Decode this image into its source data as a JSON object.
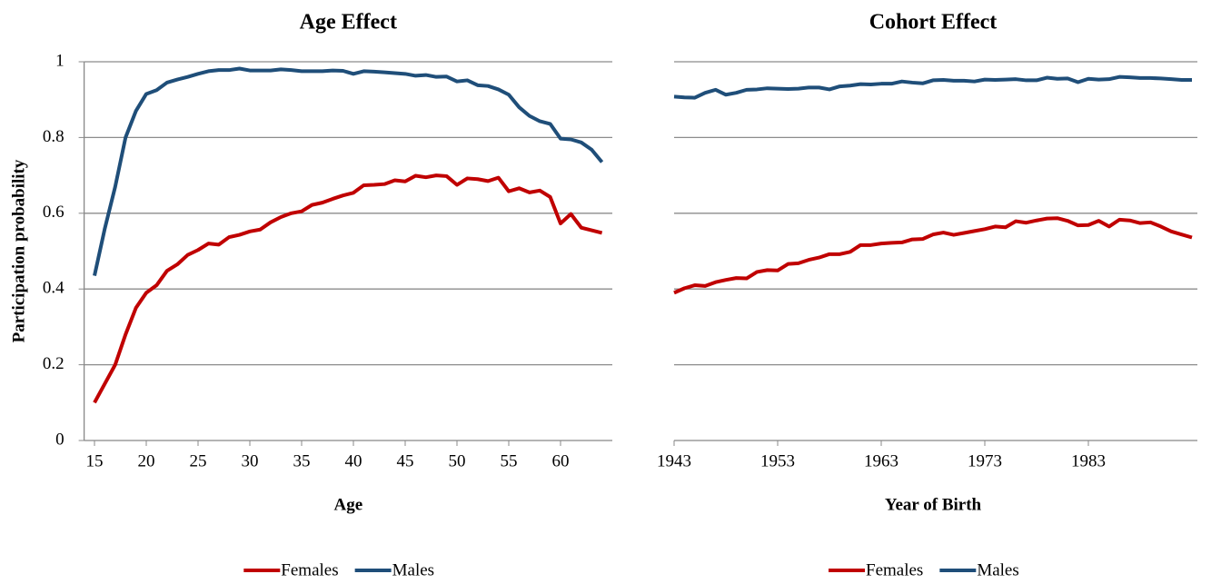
{
  "chart_data": [
    {
      "type": "line",
      "title": "Age Effect",
      "x_label": "Age",
      "y_label": "Participation probability",
      "x": [
        15,
        16,
        17,
        18,
        19,
        20,
        21,
        22,
        23,
        24,
        25,
        26,
        27,
        28,
        29,
        30,
        31,
        32,
        33,
        34,
        35,
        36,
        37,
        38,
        39,
        40,
        41,
        42,
        43,
        44,
        45,
        46,
        47,
        48,
        49,
        50,
        51,
        52,
        53,
        54,
        55,
        56,
        57,
        58,
        59,
        60,
        61,
        62,
        63,
        64
      ],
      "series": [
        {
          "name": "Females",
          "color": "#c00000",
          "values": [
            0.1,
            0.15,
            0.2,
            0.28,
            0.35,
            0.39,
            0.41,
            0.448,
            0.465,
            0.49,
            0.503,
            0.52,
            0.517,
            0.537,
            0.543,
            0.552,
            0.557,
            0.576,
            0.59,
            0.6,
            0.605,
            0.622,
            0.628,
            0.638,
            0.647,
            0.654,
            0.674,
            0.675,
            0.677,
            0.687,
            0.684,
            0.699,
            0.695,
            0.7,
            0.698,
            0.675,
            0.692,
            0.69,
            0.685,
            0.694,
            0.658,
            0.666,
            0.655,
            0.66,
            0.643,
            0.573,
            0.598,
            0.562,
            0.555,
            0.548
          ]
        },
        {
          "name": "Males",
          "color": "#1f4e79",
          "values": [
            0.435,
            0.56,
            0.67,
            0.8,
            0.87,
            0.915,
            0.925,
            0.945,
            0.953,
            0.96,
            0.968,
            0.975,
            0.978,
            0.978,
            0.982,
            0.977,
            0.977,
            0.977,
            0.98,
            0.978,
            0.975,
            0.975,
            0.975,
            0.977,
            0.976,
            0.968,
            0.975,
            0.974,
            0.972,
            0.97,
            0.968,
            0.963,
            0.965,
            0.96,
            0.961,
            0.948,
            0.951,
            0.938,
            0.936,
            0.927,
            0.913,
            0.88,
            0.857,
            0.843,
            0.836,
            0.797,
            0.795,
            0.787,
            0.768,
            0.735
          ]
        }
      ],
      "xlim": [
        14,
        65
      ],
      "xticks": [
        15,
        20,
        25,
        30,
        35,
        40,
        45,
        50,
        55,
        60
      ],
      "ylim": [
        0,
        1
      ],
      "yticks": [
        0,
        0.2,
        0.4,
        0.6,
        0.8,
        1
      ],
      "ytick_labels": true,
      "grid": true,
      "legend": "bottom"
    },
    {
      "type": "line",
      "title": "Cohort Effect",
      "x_label": "Year of Birth",
      "x": [
        1943,
        1944,
        1945,
        1946,
        1947,
        1948,
        1949,
        1950,
        1951,
        1952,
        1953,
        1954,
        1955,
        1956,
        1957,
        1958,
        1959,
        1960,
        1961,
        1962,
        1963,
        1964,
        1965,
        1966,
        1967,
        1968,
        1969,
        1970,
        1971,
        1972,
        1973,
        1974,
        1975,
        1976,
        1977,
        1978,
        1979,
        1980,
        1981,
        1982,
        1983,
        1984,
        1985,
        1986,
        1987,
        1988,
        1989,
        1990,
        1991,
        1992,
        1993
      ],
      "series": [
        {
          "name": "Females",
          "color": "#c00000",
          "values": [
            0.39,
            0.402,
            0.41,
            0.408,
            0.418,
            0.424,
            0.429,
            0.428,
            0.445,
            0.45,
            0.449,
            0.466,
            0.468,
            0.477,
            0.483,
            0.492,
            0.492,
            0.498,
            0.516,
            0.516,
            0.52,
            0.522,
            0.523,
            0.531,
            0.532,
            0.544,
            0.549,
            0.543,
            0.548,
            0.553,
            0.558,
            0.565,
            0.563,
            0.579,
            0.575,
            0.581,
            0.586,
            0.587,
            0.58,
            0.568,
            0.569,
            0.58,
            0.565,
            0.583,
            0.581,
            0.574,
            0.576,
            0.565,
            0.552,
            0.544,
            0.536
          ]
        },
        {
          "name": "Males",
          "color": "#1f4e79",
          "values": [
            0.908,
            0.906,
            0.905,
            0.918,
            0.926,
            0.913,
            0.918,
            0.926,
            0.927,
            0.93,
            0.929,
            0.928,
            0.929,
            0.932,
            0.932,
            0.927,
            0.935,
            0.937,
            0.941,
            0.94,
            0.942,
            0.942,
            0.948,
            0.945,
            0.943,
            0.951,
            0.952,
            0.95,
            0.95,
            0.948,
            0.953,
            0.952,
            0.953,
            0.954,
            0.951,
            0.951,
            0.958,
            0.955,
            0.956,
            0.946,
            0.955,
            0.953,
            0.954,
            0.96,
            0.959,
            0.957,
            0.957,
            0.956,
            0.954,
            0.952,
            0.952
          ]
        }
      ],
      "xlim": [
        1943,
        1993
      ],
      "xticks": [
        1943,
        1953,
        1963,
        1973,
        1983
      ],
      "ylim": [
        0,
        1
      ],
      "yticks": [
        0,
        0.2,
        0.4,
        0.6,
        0.8,
        1
      ],
      "ytick_labels": false,
      "grid": true,
      "legend": "bottom"
    }
  ]
}
